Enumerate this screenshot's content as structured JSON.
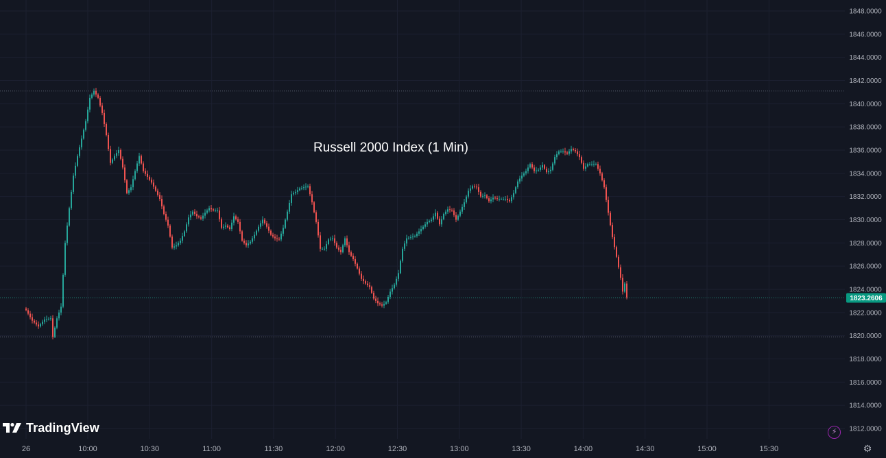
{
  "chart_data": {
    "type": "candlestick",
    "title": "Russell 2000 Index (1 Min)",
    "interval": "1 Min",
    "ylim": [
      1811,
      1849
    ],
    "grid": true,
    "y_ticks": [
      "1812.0000",
      "1814.0000",
      "1816.0000",
      "1818.0000",
      "1820.0000",
      "1822.0000",
      "1824.0000",
      "1826.0000",
      "1828.0000",
      "1830.0000",
      "1832.0000",
      "1834.0000",
      "1836.0000",
      "1838.0000",
      "1840.0000",
      "1842.0000",
      "1844.0000",
      "1846.0000",
      "1848.0000"
    ],
    "x_ticks": [
      "26",
      "10:00",
      "10:30",
      "11:00",
      "11:30",
      "12:00",
      "12:30",
      "13:00",
      "13:30",
      "14:00",
      "14:30",
      "15:00",
      "15:30"
    ],
    "last_price": "1823.2606",
    "last_price_value": 1823.26,
    "session_high": 1841.1,
    "session_low": 1819.9,
    "up_color": "#26a69a",
    "down_color": "#ef5350",
    "price_path": [
      [
        "09:30",
        1822.2
      ],
      [
        "09:33",
        1821.3
      ],
      [
        "09:36",
        1820.8
      ],
      [
        "09:39",
        1821.4
      ],
      [
        "09:42",
        1821.5
      ],
      [
        "09:43",
        1819.9
      ],
      [
        "09:45",
        1821.5
      ],
      [
        "09:47",
        1822.5
      ],
      [
        "09:49",
        1828.0
      ],
      [
        "09:51",
        1831.0
      ],
      [
        "09:53",
        1833.8
      ],
      [
        "09:55",
        1835.5
      ],
      [
        "09:57",
        1837.0
      ],
      [
        "09:59",
        1838.5
      ],
      [
        "10:01",
        1840.5
      ],
      [
        "10:03",
        1841.1
      ],
      [
        "10:05",
        1840.5
      ],
      [
        "10:07",
        1839.2
      ],
      [
        "10:09",
        1837.3
      ],
      [
        "10:11",
        1834.9
      ],
      [
        "10:13",
        1835.5
      ],
      [
        "10:15",
        1836.0
      ],
      [
        "10:17",
        1834.5
      ],
      [
        "10:19",
        1832.3
      ],
      [
        "10:21",
        1832.8
      ],
      [
        "10:23",
        1834.2
      ],
      [
        "10:25",
        1835.5
      ],
      [
        "10:27",
        1834.2
      ],
      [
        "10:29",
        1833.7
      ],
      [
        "10:31",
        1833.2
      ],
      [
        "10:33",
        1832.5
      ],
      [
        "10:35",
        1831.8
      ],
      [
        "10:37",
        1830.5
      ],
      [
        "10:39",
        1829.5
      ],
      [
        "10:41",
        1827.6
      ],
      [
        "10:43",
        1827.8
      ],
      [
        "10:45",
        1828.2
      ],
      [
        "10:47",
        1829.0
      ],
      [
        "10:49",
        1830.2
      ],
      [
        "10:51",
        1830.7
      ],
      [
        "10:53",
        1830.3
      ],
      [
        "10:55",
        1830.1
      ],
      [
        "10:57",
        1830.6
      ],
      [
        "10:59",
        1831.0
      ],
      [
        "11:01",
        1830.8
      ],
      [
        "11:03",
        1830.8
      ],
      [
        "11:05",
        1829.3
      ],
      [
        "11:07",
        1829.5
      ],
      [
        "11:09",
        1829.2
      ],
      [
        "11:11",
        1830.3
      ],
      [
        "11:13",
        1829.8
      ],
      [
        "11:15",
        1828.2
      ],
      [
        "11:17",
        1827.8
      ],
      [
        "11:19",
        1828.1
      ],
      [
        "11:21",
        1828.7
      ],
      [
        "11:23",
        1829.4
      ],
      [
        "11:25",
        1830.0
      ],
      [
        "11:27",
        1829.4
      ],
      [
        "11:29",
        1828.7
      ],
      [
        "11:31",
        1828.4
      ],
      [
        "11:33",
        1828.3
      ],
      [
        "11:35",
        1829.3
      ],
      [
        "11:37",
        1830.7
      ],
      [
        "11:39",
        1832.2
      ],
      [
        "11:41",
        1832.4
      ],
      [
        "11:43",
        1832.7
      ],
      [
        "11:45",
        1832.8
      ],
      [
        "11:47",
        1832.9
      ],
      [
        "11:49",
        1831.5
      ],
      [
        "11:51",
        1829.8
      ],
      [
        "11:53",
        1827.5
      ],
      [
        "11:55",
        1827.5
      ],
      [
        "11:57",
        1828.3
      ],
      [
        "11:59",
        1828.4
      ],
      [
        "12:01",
        1827.6
      ],
      [
        "12:03",
        1827.2
      ],
      [
        "12:05",
        1828.4
      ],
      [
        "12:07",
        1827.2
      ],
      [
        "12:09",
        1826.6
      ],
      [
        "12:11",
        1825.8
      ],
      [
        "12:13",
        1824.9
      ],
      [
        "12:15",
        1824.5
      ],
      [
        "12:17",
        1824.2
      ],
      [
        "12:19",
        1823.2
      ],
      [
        "12:21",
        1822.8
      ],
      [
        "12:23",
        1822.6
      ],
      [
        "12:25",
        1822.9
      ],
      [
        "12:27",
        1823.8
      ],
      [
        "12:29",
        1824.4
      ],
      [
        "12:31",
        1825.4
      ],
      [
        "12:33",
        1827.5
      ],
      [
        "12:35",
        1828.4
      ],
      [
        "12:37",
        1828.5
      ],
      [
        "12:39",
        1828.6
      ],
      [
        "12:41",
        1829.0
      ],
      [
        "12:43",
        1829.4
      ],
      [
        "12:45",
        1829.8
      ],
      [
        "12:47",
        1830.0
      ],
      [
        "12:49",
        1830.6
      ],
      [
        "12:51",
        1829.6
      ],
      [
        "12:53",
        1830.5
      ],
      [
        "12:55",
        1830.9
      ],
      [
        "12:57",
        1830.8
      ],
      [
        "12:59",
        1830.0
      ],
      [
        "13:01",
        1830.7
      ],
      [
        "13:03",
        1831.5
      ],
      [
        "13:05",
        1832.5
      ],
      [
        "13:07",
        1832.9
      ],
      [
        "13:09",
        1832.8
      ],
      [
        "13:11",
        1832.0
      ],
      [
        "13:13",
        1832.1
      ],
      [
        "13:15",
        1831.6
      ],
      [
        "13:17",
        1831.9
      ],
      [
        "13:19",
        1831.8
      ],
      [
        "13:21",
        1831.8
      ],
      [
        "13:23",
        1831.8
      ],
      [
        "13:25",
        1831.6
      ],
      [
        "13:27",
        1832.3
      ],
      [
        "13:29",
        1833.3
      ],
      [
        "13:31",
        1833.8
      ],
      [
        "13:33",
        1834.2
      ],
      [
        "13:35",
        1834.8
      ],
      [
        "13:37",
        1834.2
      ],
      [
        "13:39",
        1834.3
      ],
      [
        "13:41",
        1834.7
      ],
      [
        "13:43",
        1834.1
      ],
      [
        "13:45",
        1834.3
      ],
      [
        "13:47",
        1835.4
      ],
      [
        "13:49",
        1835.9
      ],
      [
        "13:51",
        1835.9
      ],
      [
        "13:53",
        1835.7
      ],
      [
        "13:55",
        1836.1
      ],
      [
        "13:57",
        1835.9
      ],
      [
        "13:59",
        1835.4
      ],
      [
        "14:01",
        1834.4
      ],
      [
        "14:03",
        1834.8
      ],
      [
        "14:05",
        1834.8
      ],
      [
        "14:07",
        1834.8
      ],
      [
        "14:09",
        1834.0
      ],
      [
        "14:11",
        1832.8
      ],
      [
        "14:13",
        1830.6
      ],
      [
        "14:15",
        1828.5
      ],
      [
        "14:17",
        1826.8
      ],
      [
        "14:19",
        1825.0
      ],
      [
        "14:20",
        1823.8
      ],
      [
        "14:21",
        1824.5
      ],
      [
        "14:22",
        1823.3
      ]
    ]
  },
  "brand": {
    "name": "TradingView"
  },
  "icons": {
    "lightning": "lightning-icon",
    "settings": "settings-icon",
    "logo": "tradingview-logo-icon"
  }
}
